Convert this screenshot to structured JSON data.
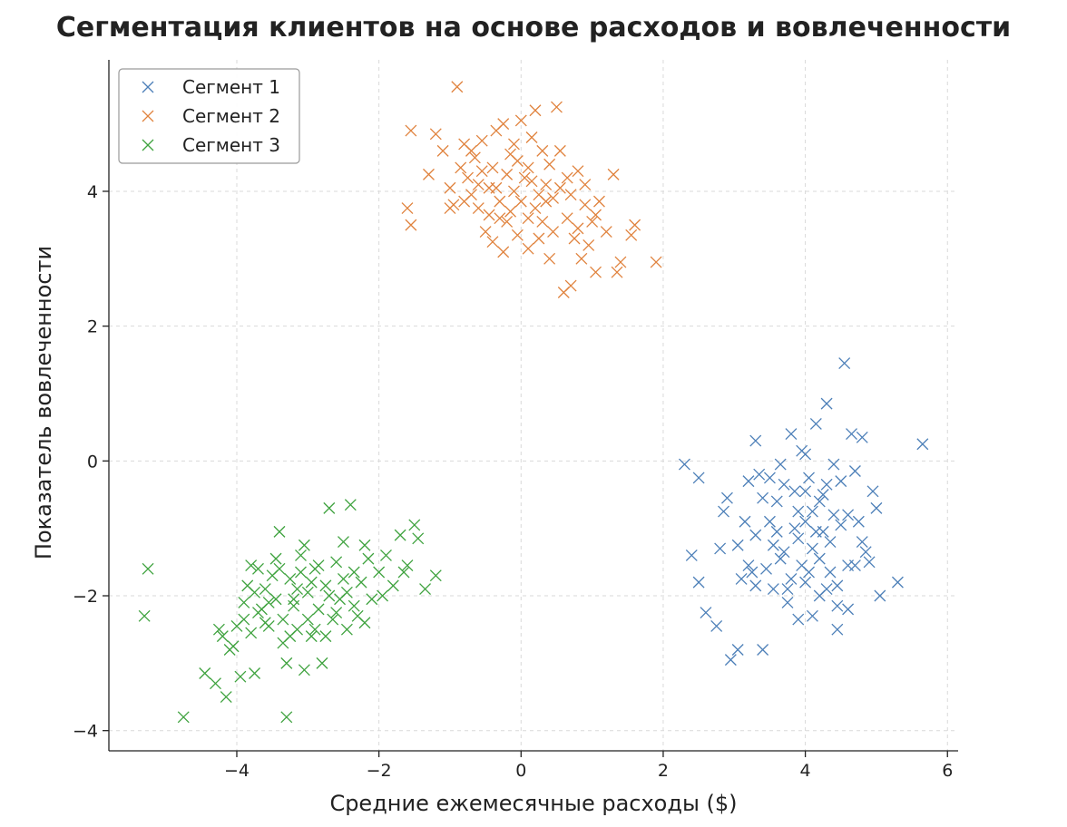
{
  "chart_data": {
    "type": "scatter",
    "title": "Сегментация клиентов на основе расходов и вовлеченности",
    "xlabel": "Средние ежемесячные расходы ($)",
    "ylabel": "Показатель вовлеченности",
    "xlim": [
      -5.8,
      6.15
    ],
    "ylim": [
      -4.3,
      5.95
    ],
    "xticks": [
      -4,
      -2,
      0,
      2,
      4,
      6
    ],
    "yticks": [
      -4,
      -2,
      0,
      2,
      4
    ],
    "xtick_labels": [
      "−4",
      "−2",
      "0",
      "2",
      "4",
      "6"
    ],
    "ytick_labels": [
      "−4",
      "−2",
      "0",
      "2",
      "4"
    ],
    "grid": true,
    "marker": "x",
    "legend_position": "top-left",
    "series": [
      {
        "name": "Сегмент 1",
        "color": "#4c7fb8",
        "points": [
          [
            2.3,
            -0.05
          ],
          [
            2.5,
            -0.25
          ],
          [
            2.4,
            -1.4
          ],
          [
            2.5,
            -1.8
          ],
          [
            2.6,
            -2.25
          ],
          [
            2.75,
            -2.45
          ],
          [
            2.8,
            -1.3
          ],
          [
            2.9,
            -0.55
          ],
          [
            2.85,
            -0.75
          ],
          [
            2.95,
            -2.95
          ],
          [
            3.05,
            -2.8
          ],
          [
            3.1,
            -1.75
          ],
          [
            3.2,
            -1.55
          ],
          [
            3.25,
            -1.65
          ],
          [
            3.3,
            -1.85
          ],
          [
            3.3,
            0.3
          ],
          [
            3.35,
            -0.2
          ],
          [
            3.4,
            -2.8
          ],
          [
            3.45,
            -1.6
          ],
          [
            3.5,
            -0.9
          ],
          [
            3.55,
            -1.25
          ],
          [
            3.6,
            -1.05
          ],
          [
            3.6,
            -0.6
          ],
          [
            3.65,
            -0.05
          ],
          [
            3.7,
            -1.35
          ],
          [
            3.75,
            -1.9
          ],
          [
            3.8,
            0.4
          ],
          [
            3.85,
            -1.0
          ],
          [
            3.9,
            -0.75
          ],
          [
            3.9,
            -2.35
          ],
          [
            3.95,
            -1.55
          ],
          [
            4.0,
            -1.8
          ],
          [
            4.0,
            -0.45
          ],
          [
            4.05,
            -0.25
          ],
          [
            4.1,
            -1.3
          ],
          [
            4.1,
            -2.3
          ],
          [
            4.15,
            0.55
          ],
          [
            4.2,
            -0.6
          ],
          [
            4.25,
            -1.05
          ],
          [
            4.3,
            0.85
          ],
          [
            4.3,
            -0.35
          ],
          [
            4.35,
            -1.65
          ],
          [
            4.4,
            -0.8
          ],
          [
            4.45,
            -2.15
          ],
          [
            4.45,
            -2.5
          ],
          [
            4.5,
            -0.95
          ],
          [
            4.55,
            1.45
          ],
          [
            4.6,
            -1.55
          ],
          [
            4.65,
            0.4
          ],
          [
            4.7,
            -0.15
          ],
          [
            4.75,
            -0.9
          ],
          [
            4.8,
            0.35
          ],
          [
            4.85,
            -1.35
          ],
          [
            4.9,
            -1.5
          ],
          [
            4.95,
            -0.45
          ],
          [
            5.0,
            -0.7
          ],
          [
            5.05,
            -2.0
          ],
          [
            5.3,
            -1.8
          ],
          [
            5.65,
            0.25
          ],
          [
            3.15,
            -0.9
          ],
          [
            3.4,
            -0.55
          ],
          [
            3.7,
            -0.35
          ],
          [
            4.0,
            -0.9
          ],
          [
            4.2,
            -1.45
          ],
          [
            4.35,
            -1.2
          ],
          [
            3.55,
            -1.9
          ],
          [
            3.8,
            -1.75
          ],
          [
            4.05,
            -1.65
          ],
          [
            3.95,
            0.15
          ],
          [
            4.5,
            -0.3
          ],
          [
            4.6,
            -0.8
          ],
          [
            4.8,
            -1.2
          ],
          [
            3.3,
            -1.1
          ],
          [
            3.65,
            -1.45
          ],
          [
            3.9,
            -1.15
          ],
          [
            4.1,
            -0.75
          ],
          [
            4.25,
            -0.5
          ],
          [
            4.4,
            -0.05
          ],
          [
            3.5,
            -0.25
          ],
          [
            4.2,
            -2.0
          ],
          [
            4.45,
            -1.85
          ],
          [
            3.75,
            -2.1
          ],
          [
            4.7,
            -1.55
          ],
          [
            4.6,
            -2.2
          ],
          [
            3.05,
            -1.25
          ],
          [
            3.2,
            -0.3
          ],
          [
            4.3,
            -1.9
          ],
          [
            4.0,
            0.1
          ],
          [
            3.85,
            -0.45
          ],
          [
            4.15,
            -1.05
          ]
        ]
      },
      {
        "name": "Сегмент 2",
        "color": "#e0823d",
        "points": [
          [
            -1.6,
            3.75
          ],
          [
            -1.55,
            3.5
          ],
          [
            -1.55,
            4.9
          ],
          [
            -1.3,
            4.25
          ],
          [
            -1.2,
            4.85
          ],
          [
            -1.1,
            4.6
          ],
          [
            -1.0,
            4.05
          ],
          [
            -0.95,
            3.8
          ],
          [
            -0.9,
            5.55
          ],
          [
            -0.8,
            4.7
          ],
          [
            -0.75,
            4.2
          ],
          [
            -0.7,
            3.95
          ],
          [
            -0.65,
            4.5
          ],
          [
            -0.6,
            4.1
          ],
          [
            -0.55,
            4.75
          ],
          [
            -0.5,
            3.4
          ],
          [
            -0.45,
            3.65
          ],
          [
            -0.4,
            4.35
          ],
          [
            -0.35,
            4.05
          ],
          [
            -0.3,
            3.85
          ],
          [
            -0.25,
            3.1
          ],
          [
            -0.2,
            3.55
          ],
          [
            -0.15,
            4.55
          ],
          [
            -0.1,
            4.0
          ],
          [
            -0.05,
            3.35
          ],
          [
            0.0,
            5.05
          ],
          [
            0.05,
            4.2
          ],
          [
            0.1,
            3.15
          ],
          [
            0.15,
            4.8
          ],
          [
            0.2,
            3.75
          ],
          [
            0.25,
            3.3
          ],
          [
            0.3,
            4.6
          ],
          [
            0.35,
            3.85
          ],
          [
            0.4,
            4.4
          ],
          [
            0.45,
            3.4
          ],
          [
            0.5,
            5.25
          ],
          [
            0.55,
            4.05
          ],
          [
            0.6,
            2.5
          ],
          [
            0.65,
            3.6
          ],
          [
            0.7,
            2.6
          ],
          [
            0.75,
            3.3
          ],
          [
            0.8,
            4.3
          ],
          [
            0.85,
            3.0
          ],
          [
            0.9,
            3.8
          ],
          [
            0.95,
            3.2
          ],
          [
            1.0,
            3.55
          ],
          [
            1.05,
            2.8
          ],
          [
            1.1,
            3.85
          ],
          [
            1.2,
            3.4
          ],
          [
            1.3,
            4.25
          ],
          [
            1.35,
            2.8
          ],
          [
            1.4,
            2.95
          ],
          [
            1.55,
            3.35
          ],
          [
            1.6,
            3.5
          ],
          [
            1.9,
            2.95
          ],
          [
            -0.35,
            4.9
          ],
          [
            -0.1,
            4.7
          ],
          [
            0.15,
            4.15
          ],
          [
            0.35,
            4.1
          ],
          [
            -0.55,
            4.3
          ],
          [
            -0.8,
            3.85
          ],
          [
            0.55,
            4.6
          ],
          [
            0.1,
            3.6
          ],
          [
            -0.2,
            4.25
          ],
          [
            0.45,
            3.9
          ],
          [
            -0.4,
            3.25
          ],
          [
            0.25,
            3.95
          ],
          [
            -0.6,
            3.75
          ],
          [
            0.7,
            3.95
          ],
          [
            -0.05,
            4.45
          ],
          [
            0.2,
            5.2
          ],
          [
            -0.25,
            5.0
          ],
          [
            1.05,
            3.65
          ],
          [
            0.8,
            3.45
          ],
          [
            -0.7,
            4.6
          ],
          [
            0.0,
            3.85
          ],
          [
            -0.45,
            4.05
          ],
          [
            0.3,
            3.55
          ],
          [
            0.65,
            4.2
          ],
          [
            -0.15,
            3.7
          ],
          [
            -1.0,
            3.75
          ],
          [
            -0.85,
            4.35
          ],
          [
            0.9,
            4.1
          ],
          [
            -0.3,
            3.6
          ],
          [
            0.4,
            3.0
          ],
          [
            0.1,
            4.35
          ]
        ]
      },
      {
        "name": "Сегмент 3",
        "color": "#3ea23e",
        "points": [
          [
            -5.25,
            -1.6
          ],
          [
            -5.3,
            -2.3
          ],
          [
            -4.75,
            -3.8
          ],
          [
            -4.45,
            -3.15
          ],
          [
            -4.3,
            -3.3
          ],
          [
            -4.2,
            -2.6
          ],
          [
            -4.15,
            -3.5
          ],
          [
            -4.1,
            -2.8
          ],
          [
            -4.0,
            -2.45
          ],
          [
            -3.95,
            -3.2
          ],
          [
            -3.9,
            -2.1
          ],
          [
            -3.85,
            -1.85
          ],
          [
            -3.8,
            -2.55
          ],
          [
            -3.75,
            -3.15
          ],
          [
            -3.7,
            -1.6
          ],
          [
            -3.65,
            -2.2
          ],
          [
            -3.6,
            -1.9
          ],
          [
            -3.55,
            -2.45
          ],
          [
            -3.5,
            -1.7
          ],
          [
            -3.45,
            -2.05
          ],
          [
            -3.4,
            -1.05
          ],
          [
            -3.35,
            -2.35
          ],
          [
            -3.3,
            -3.0
          ],
          [
            -3.3,
            -3.8
          ],
          [
            -3.25,
            -1.75
          ],
          [
            -3.2,
            -2.15
          ],
          [
            -3.15,
            -2.5
          ],
          [
            -3.1,
            -1.4
          ],
          [
            -3.05,
            -3.1
          ],
          [
            -3.0,
            -1.95
          ],
          [
            -2.95,
            -2.6
          ],
          [
            -2.9,
            -1.6
          ],
          [
            -2.85,
            -2.2
          ],
          [
            -2.8,
            -3.0
          ],
          [
            -2.75,
            -1.85
          ],
          [
            -2.7,
            -0.7
          ],
          [
            -2.65,
            -2.35
          ],
          [
            -2.6,
            -1.5
          ],
          [
            -2.55,
            -2.05
          ],
          [
            -2.5,
            -1.2
          ],
          [
            -2.45,
            -2.5
          ],
          [
            -2.4,
            -0.65
          ],
          [
            -2.35,
            -1.65
          ],
          [
            -2.3,
            -2.3
          ],
          [
            -2.25,
            -1.8
          ],
          [
            -2.2,
            -1.25
          ],
          [
            -2.1,
            -2.05
          ],
          [
            -2.0,
            -1.65
          ],
          [
            -1.9,
            -1.4
          ],
          [
            -1.8,
            -1.85
          ],
          [
            -1.7,
            -1.1
          ],
          [
            -1.6,
            -1.55
          ],
          [
            -1.5,
            -0.95
          ],
          [
            -1.45,
            -1.15
          ],
          [
            -1.35,
            -1.9
          ],
          [
            -1.2,
            -1.7
          ],
          [
            -3.7,
            -2.25
          ],
          [
            -3.2,
            -2.05
          ],
          [
            -2.95,
            -1.8
          ],
          [
            -3.55,
            -2.1
          ],
          [
            -3.0,
            -2.35
          ],
          [
            -2.7,
            -2.0
          ],
          [
            -3.45,
            -1.45
          ],
          [
            -2.85,
            -1.55
          ],
          [
            -3.35,
            -2.7
          ],
          [
            -2.6,
            -2.25
          ],
          [
            -3.8,
            -1.55
          ],
          [
            -3.15,
            -1.9
          ],
          [
            -2.5,
            -1.75
          ],
          [
            -2.9,
            -2.5
          ],
          [
            -3.6,
            -2.4
          ],
          [
            -2.35,
            -2.15
          ],
          [
            -3.25,
            -2.6
          ],
          [
            -4.05,
            -2.75
          ],
          [
            -3.05,
            -1.25
          ],
          [
            -2.75,
            -2.6
          ],
          [
            -2.15,
            -1.45
          ],
          [
            -1.95,
            -2.0
          ],
          [
            -4.25,
            -2.5
          ],
          [
            -3.9,
            -2.35
          ],
          [
            -3.4,
            -1.6
          ],
          [
            -2.45,
            -1.95
          ],
          [
            -3.1,
            -1.65
          ],
          [
            -2.2,
            -2.4
          ],
          [
            -1.65,
            -1.65
          ],
          [
            -3.75,
            -1.95
          ]
        ]
      }
    ]
  }
}
